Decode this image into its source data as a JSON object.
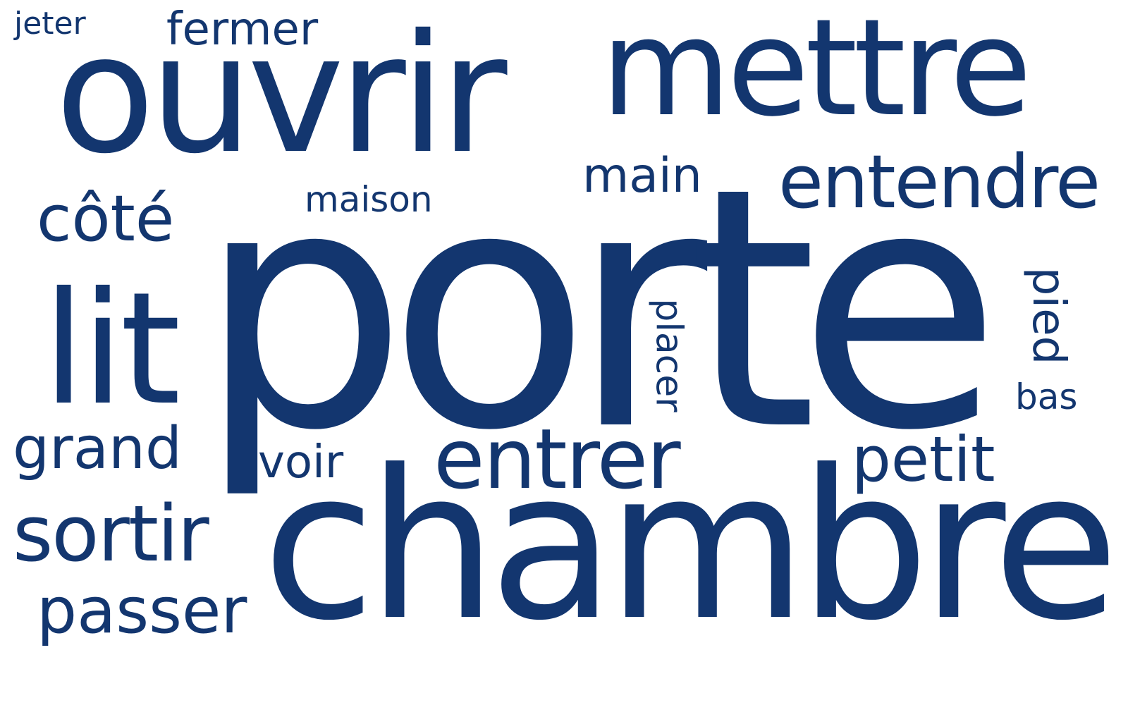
{
  "color": "#13366f",
  "background": "#ffffff",
  "words": {
    "porte": "porte",
    "chambre": "chambre",
    "ouvrir": "ouvrir",
    "mettre": "mettre",
    "lit": "lit",
    "entrer": "entrer",
    "entendre": "entendre",
    "sortir": "sortir",
    "passer": "passer",
    "cote": "côté",
    "grand": "grand",
    "petit": "petit",
    "main": "main",
    "voir": "voir",
    "fermer": "fermer",
    "maison": "maison",
    "jeter": "jeter",
    "bas": "bas",
    "placer": "placer",
    "pied": "pied"
  }
}
